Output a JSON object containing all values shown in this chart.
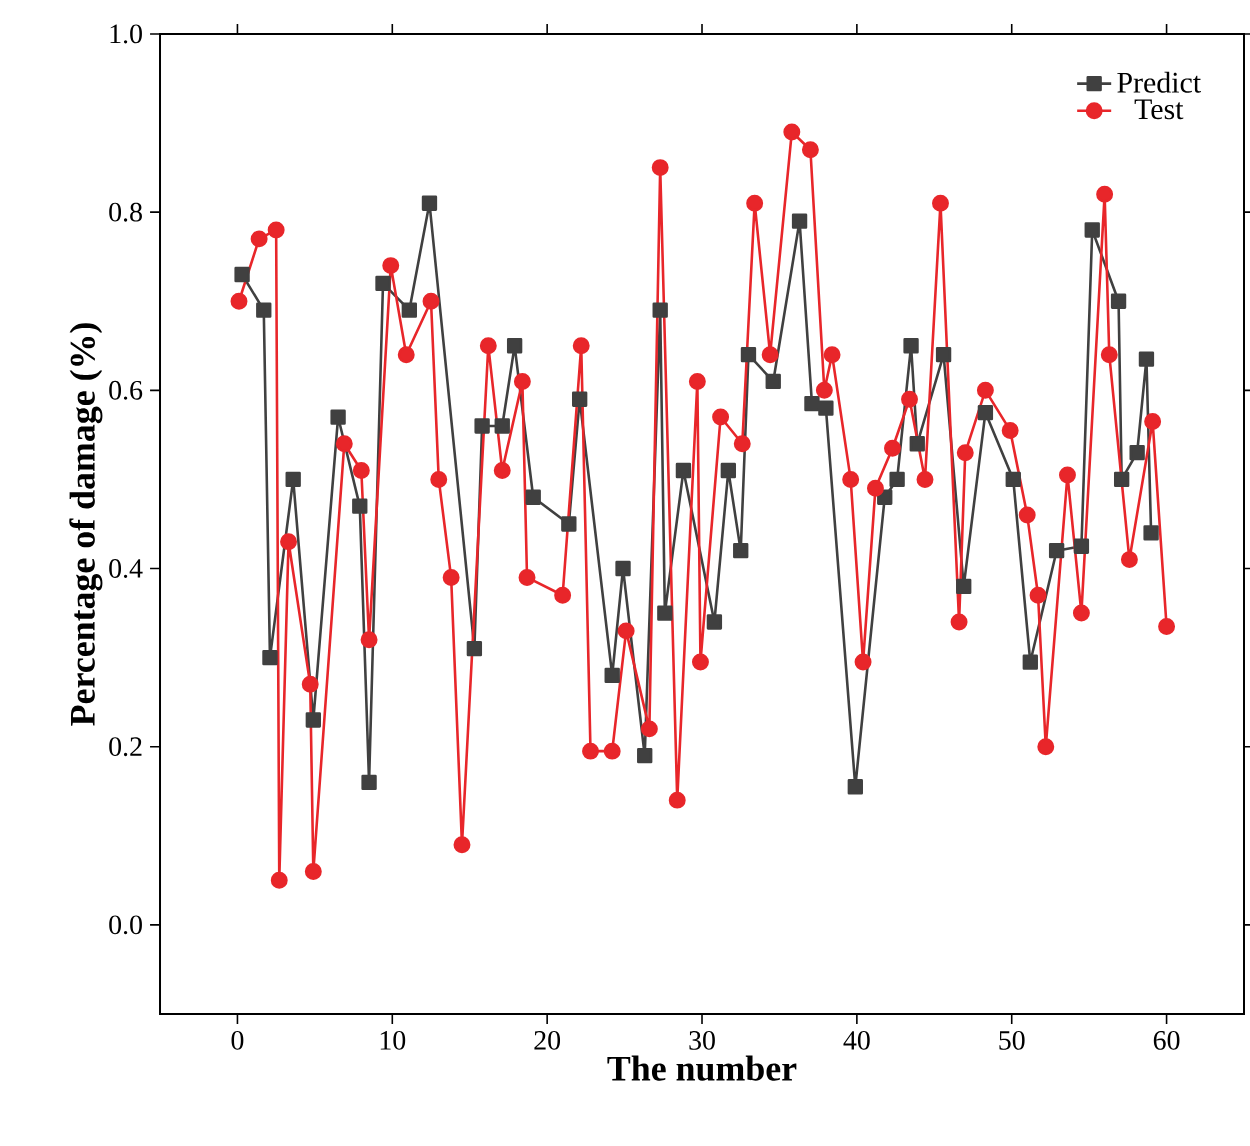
{
  "chart_data": {
    "type": "line",
    "xlabel": "The number",
    "ylabel": "Percentage of damage (%)",
    "xlim": [
      -5,
      65
    ],
    "xticks": [
      0,
      10,
      20,
      30,
      40,
      50,
      60
    ],
    "ylim": [
      -0.1,
      1.0
    ],
    "yticks": [
      {
        "value": 0,
        "label": "0.0"
      },
      {
        "value": 0.2,
        "label": "0.2"
      },
      {
        "value": 0.4,
        "label": "0.4"
      },
      {
        "value": 0.6,
        "label": "0.6"
      },
      {
        "value": 0.8,
        "label": "0.8"
      },
      {
        "value": 1.0,
        "label": "1.0"
      }
    ],
    "legend": "top right",
    "grid": false,
    "series": [
      {
        "name": "Predict",
        "color": "#404040",
        "marker": "square",
        "x": [
          0.3,
          1.7,
          2.1,
          3.6,
          4.9,
          6.5,
          7.9,
          8.5,
          9.4,
          11.1,
          12.4,
          15.3,
          15.8,
          17.1,
          17.9,
          19.1,
          21.4,
          22.1,
          24.2,
          24.9,
          26.3,
          27.3,
          27.6,
          28.8,
          30.8,
          31.7,
          32.5,
          33.0,
          34.6,
          36.3,
          37.1,
          38.0,
          39.9,
          41.8,
          42.6,
          43.5,
          43.9,
          45.6,
          46.9,
          48.3,
          50.1,
          51.2,
          52.9,
          54.5,
          55.2,
          56.9,
          57.1,
          58.1,
          58.7,
          59.0
        ],
        "values": [
          0.73,
          0.69,
          0.3,
          0.5,
          0.23,
          0.57,
          0.47,
          0.16,
          0.72,
          0.69,
          0.81,
          0.31,
          0.56,
          0.56,
          0.65,
          0.48,
          0.45,
          0.59,
          0.28,
          0.4,
          0.19,
          0.69,
          0.35,
          0.51,
          0.34,
          0.51,
          0.42,
          0.64,
          0.61,
          0.79,
          0.585,
          0.58,
          0.155,
          0.48,
          0.5,
          0.65,
          0.54,
          0.64,
          0.38,
          0.575,
          0.5,
          0.295,
          0.42,
          0.425,
          0.78,
          0.7,
          0.5,
          0.53,
          0.635,
          0.44
        ]
      },
      {
        "name": "Test",
        "color": "#e8262a",
        "marker": "circle",
        "x": [
          0.1,
          1.4,
          2.5,
          2.7,
          3.3,
          4.7,
          4.9,
          6.9,
          8.0,
          8.5,
          9.9,
          10.9,
          12.5,
          13.0,
          13.8,
          14.5,
          16.2,
          17.1,
          18.4,
          18.7,
          21.0,
          22.2,
          22.8,
          24.2,
          25.1,
          26.6,
          27.3,
          28.4,
          29.7,
          29.9,
          31.2,
          32.6,
          33.4,
          34.4,
          35.8,
          37.0,
          37.9,
          38.4,
          39.6,
          40.4,
          41.2,
          42.3,
          43.4,
          44.4,
          45.4,
          46.6,
          47.0,
          48.3,
          49.9,
          51.0,
          51.7,
          52.2,
          53.6,
          54.5,
          56.0,
          56.3,
          57.6,
          59.1,
          60.0
        ],
        "values": [
          0.7,
          0.77,
          0.78,
          0.05,
          0.43,
          0.27,
          0.06,
          0.54,
          0.51,
          0.32,
          0.74,
          0.64,
          0.7,
          0.5,
          0.39,
          0.09,
          0.65,
          0.51,
          0.61,
          0.39,
          0.37,
          0.65,
          0.195,
          0.195,
          0.33,
          0.22,
          0.85,
          0.14,
          0.61,
          0.295,
          0.57,
          0.54,
          0.81,
          0.64,
          0.89,
          0.87,
          0.6,
          0.64,
          0.5,
          0.295,
          0.49,
          0.535,
          0.59,
          0.5,
          0.81,
          0.34,
          0.53,
          0.6,
          0.555,
          0.46,
          0.37,
          0.2,
          0.505,
          0.35,
          0.82,
          0.64,
          0.41,
          0.565,
          0.335
        ]
      }
    ]
  }
}
